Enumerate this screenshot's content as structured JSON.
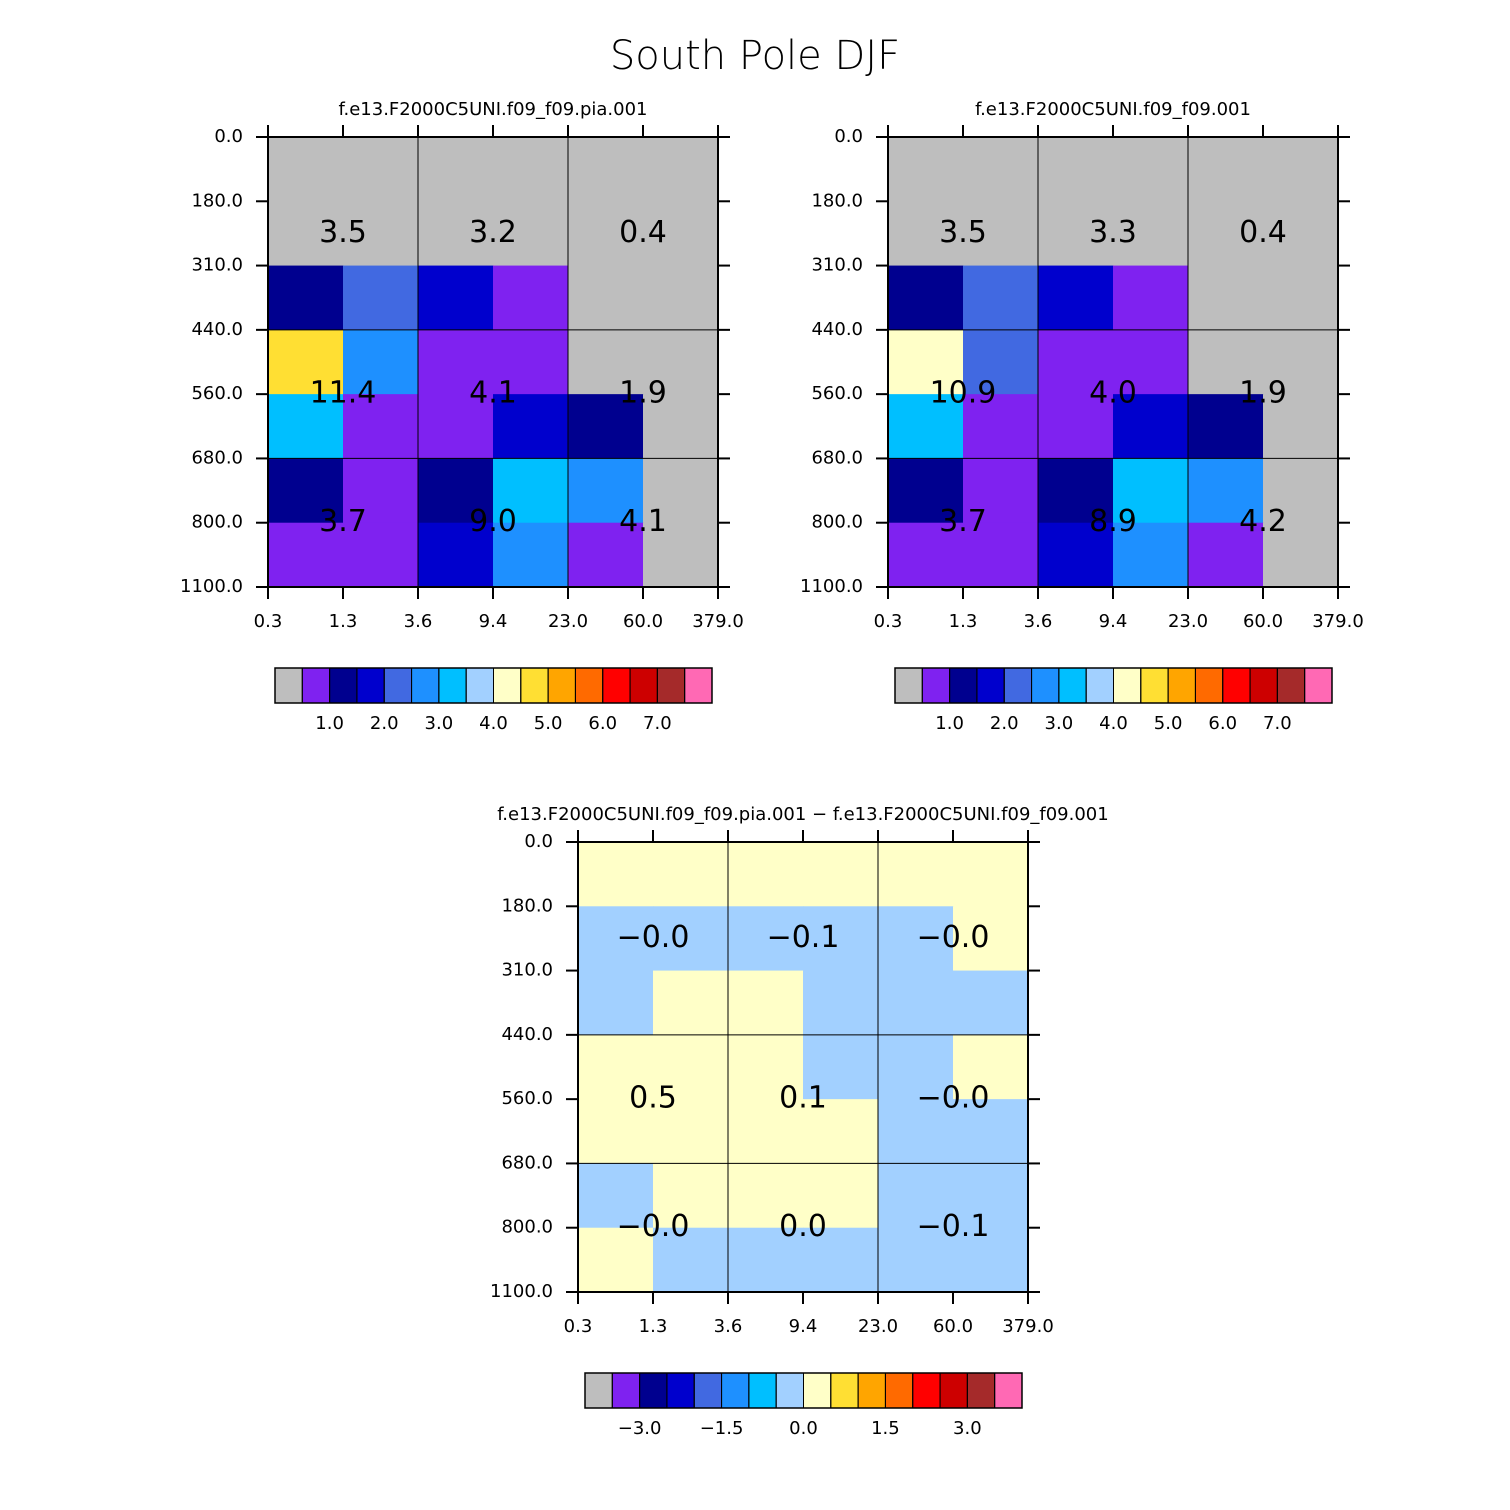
{
  "title": "South Pole DJF",
  "chart_data": [
    {
      "type": "heatmap",
      "title": "f.e13.F2000C5UNI.f09_f09.pia.001",
      "x_edges": [
        "0.3",
        "1.3",
        "3.6",
        "9.4",
        "23.0",
        "60.0",
        "379.0"
      ],
      "y_edges": [
        "0.0",
        "180.0",
        "310.0",
        "440.0",
        "560.0",
        "680.0",
        "800.0",
        "1100.0"
      ],
      "values": [
        [
          0.2,
          0.2,
          0.2,
          0.2,
          0.2,
          0.2
        ],
        [
          0.2,
          0.2,
          0.2,
          0.2,
          0.2,
          0.2
        ],
        [
          1.2,
          2.2,
          1.8,
          0.8,
          0.2,
          0.2
        ],
        [
          4.8,
          2.8,
          0.8,
          0.8,
          0.2,
          0.2
        ],
        [
          3.2,
          0.8,
          0.8,
          1.8,
          1.2,
          0.2
        ],
        [
          1.2,
          0.8,
          1.2,
          3.2,
          2.8,
          0.2
        ],
        [
          0.8,
          0.8,
          1.8,
          2.8,
          0.8,
          0.2
        ]
      ],
      "annotations": [
        [
          3.5,
          3.2,
          0.4
        ],
        [
          11.4,
          4.1,
          1.9
        ],
        [
          3.7,
          9.0,
          4.1
        ]
      ],
      "annotation_labels": [
        [
          "3.5",
          "3.2",
          "0.4"
        ],
        [
          "11.4",
          "4.1",
          "1.9"
        ],
        [
          "3.7",
          "9.0",
          "4.1"
        ]
      ],
      "colors": [
        "#bebebe",
        "#7f22f0",
        "#00008f",
        "#0000cd",
        "#4169e1",
        "#1e90ff",
        "#00bfff",
        "#a2d0ff",
        "#ffffc8",
        "#ffdf33",
        "#ffa500",
        "#ff6a00",
        "#ff0000",
        "#cd0000",
        "#a52a2a",
        "#ff69b4"
      ],
      "levels": [
        0.5,
        1.0,
        1.5,
        2.0,
        2.5,
        3.0,
        3.5,
        4.0,
        4.5,
        5.0,
        5.5,
        6.0,
        6.5,
        7.0,
        7.5
      ],
      "colorbar_ticks": [
        {
          "value": 1,
          "label": "1.0"
        },
        {
          "value": 2,
          "label": "2.0"
        },
        {
          "value": 3,
          "label": "3.0"
        },
        {
          "value": 4,
          "label": "4.0"
        },
        {
          "value": 5,
          "label": "5.0"
        },
        {
          "value": 6,
          "label": "6.0"
        },
        {
          "value": 7,
          "label": "7.0"
        }
      ]
    },
    {
      "type": "heatmap",
      "title": "f.e13.F2000C5UNI.f09_f09.001",
      "x_edges": [
        "0.3",
        "1.3",
        "3.6",
        "9.4",
        "23.0",
        "60.0",
        "379.0"
      ],
      "y_edges": [
        "0.0",
        "180.0",
        "310.0",
        "440.0",
        "560.0",
        "680.0",
        "800.0",
        "1100.0"
      ],
      "values": [
        [
          0.2,
          0.2,
          0.2,
          0.2,
          0.2,
          0.2
        ],
        [
          0.2,
          0.2,
          0.2,
          0.2,
          0.2,
          0.2
        ],
        [
          1.2,
          2.2,
          1.8,
          0.8,
          0.2,
          0.2
        ],
        [
          4.2,
          2.2,
          0.8,
          0.8,
          0.2,
          0.2
        ],
        [
          3.2,
          0.8,
          0.8,
          1.8,
          1.2,
          0.2
        ],
        [
          1.2,
          0.8,
          1.2,
          3.2,
          2.8,
          0.2
        ],
        [
          0.8,
          0.8,
          1.8,
          2.8,
          0.8,
          0.2
        ]
      ],
      "annotations": [
        [
          3.5,
          3.3,
          0.4
        ],
        [
          10.9,
          4.0,
          1.9
        ],
        [
          3.7,
          8.9,
          4.2
        ]
      ],
      "annotation_labels": [
        [
          "3.5",
          "3.3",
          "0.4"
        ],
        [
          "10.9",
          "4.0",
          "1.9"
        ],
        [
          "3.7",
          "8.9",
          "4.2"
        ]
      ],
      "colors": [
        "#bebebe",
        "#7f22f0",
        "#00008f",
        "#0000cd",
        "#4169e1",
        "#1e90ff",
        "#00bfff",
        "#a2d0ff",
        "#ffffc8",
        "#ffdf33",
        "#ffa500",
        "#ff6a00",
        "#ff0000",
        "#cd0000",
        "#a52a2a",
        "#ff69b4"
      ],
      "levels": [
        0.5,
        1.0,
        1.5,
        2.0,
        2.5,
        3.0,
        3.5,
        4.0,
        4.5,
        5.0,
        5.5,
        6.0,
        6.5,
        7.0,
        7.5
      ],
      "colorbar_ticks": [
        {
          "value": 1,
          "label": "1.0"
        },
        {
          "value": 2,
          "label": "2.0"
        },
        {
          "value": 3,
          "label": "3.0"
        },
        {
          "value": 4,
          "label": "4.0"
        },
        {
          "value": 5,
          "label": "5.0"
        },
        {
          "value": 6,
          "label": "6.0"
        },
        {
          "value": 7,
          "label": "7.0"
        }
      ]
    },
    {
      "type": "heatmap",
      "title": "f.e13.F2000C5UNI.f09_f09.pia.001 − f.e13.F2000C5UNI.f09_f09.001",
      "x_edges": [
        "0.3",
        "1.3",
        "3.6",
        "9.4",
        "23.0",
        "60.0",
        "379.0"
      ],
      "y_edges": [
        "0.0",
        "180.0",
        "310.0",
        "440.0",
        "560.0",
        "680.0",
        "800.0",
        "1100.0"
      ],
      "values": [
        [
          0.2,
          0.2,
          0.2,
          0.2,
          0.2,
          0.2
        ],
        [
          -0.2,
          -0.2,
          -0.2,
          -0.2,
          -0.2,
          0.2
        ],
        [
          -0.2,
          0.2,
          0.2,
          -0.2,
          -0.2,
          -0.2
        ],
        [
          0.2,
          0.2,
          0.2,
          -0.2,
          -0.2,
          0.2
        ],
        [
          0.2,
          0.2,
          0.2,
          0.2,
          -0.2,
          -0.2
        ],
        [
          -0.2,
          0.2,
          0.2,
          0.2,
          -0.2,
          -0.2
        ],
        [
          0.2,
          -0.2,
          -0.2,
          -0.2,
          -0.2,
          -0.2
        ]
      ],
      "annotations": [
        [
          -0.0,
          -0.1,
          -0.0
        ],
        [
          0.5,
          0.1,
          -0.0
        ],
        [
          -0.0,
          0.0,
          -0.1
        ]
      ],
      "annotation_labels": [
        [
          "−0.0",
          "−0.1",
          "−0.0"
        ],
        [
          "0.5",
          "0.1",
          "−0.0"
        ],
        [
          "−0.0",
          "0.0",
          "−0.1"
        ]
      ],
      "colors": [
        "#bebebe",
        "#7f22f0",
        "#00008f",
        "#0000cd",
        "#4169e1",
        "#1e90ff",
        "#00bfff",
        "#a2d0ff",
        "#ffffc8",
        "#ffdf33",
        "#ffa500",
        "#ff6a00",
        "#ff0000",
        "#cd0000",
        "#a52a2a",
        "#ff69b4"
      ],
      "levels": [
        -3.5,
        -3.0,
        -2.5,
        -2.0,
        -1.5,
        -1.0,
        -0.5,
        0.0,
        0.5,
        1.0,
        1.5,
        2.0,
        2.5,
        3.0,
        3.5
      ],
      "colorbar_ticks": [
        {
          "value": -3,
          "label": "−3.0"
        },
        {
          "value": -1.5,
          "label": "−1.5"
        },
        {
          "value": 0,
          "label": "0.0"
        },
        {
          "value": 1.5,
          "label": "1.5"
        },
        {
          "value": 3,
          "label": "3.0"
        }
      ]
    }
  ]
}
